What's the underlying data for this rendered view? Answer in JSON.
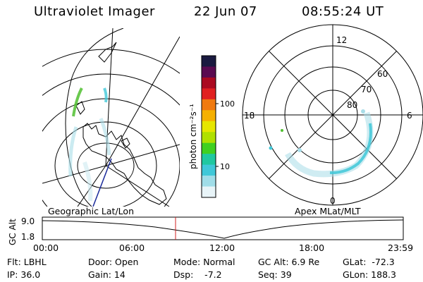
{
  "header": {
    "title": "Ultraviolet Imager",
    "date": "22 Jun 07",
    "time": "08:55:24 UT"
  },
  "colorbar": {
    "label": "photon cm⁻²s⁻¹",
    "ticks": [
      "100",
      "10"
    ],
    "colors": [
      "#1a1a40",
      "#5a0a50",
      "#aa0a20",
      "#e02020",
      "#f07a10",
      "#f5b000",
      "#e6e600",
      "#b0e000",
      "#40d020",
      "#20c8a0",
      "#40c8d8",
      "#a0dde8",
      "#e8f4f8"
    ]
  },
  "left_map": {
    "caption": "Geographic Lat/Lon"
  },
  "polar_plot": {
    "caption": "Apex MLat/MLT",
    "mlt_labels": [
      "12",
      "18",
      "6",
      "0"
    ],
    "lat_labels": [
      "60",
      "70",
      "80"
    ]
  },
  "timeline": {
    "y_axis_label": "GC Alt",
    "y_ticks": [
      "9.0",
      "1.8"
    ],
    "x_ticks": [
      "00:00",
      "06:00",
      "12:00",
      "18:00",
      "23:59"
    ]
  },
  "info": {
    "filter": "Flt: LBHL",
    "ip": "IP: 36.0",
    "door": "Door: Open",
    "gain": "Gain: 14",
    "mode": "Mode: Normal",
    "dsp": "Dsp:    -7.2",
    "gc_alt": "GC Alt: 6.9 Re",
    "seq": "Seq: 39",
    "glat": "GLat:  -72.3",
    "glon": "GLon: 188.3"
  },
  "colors": {
    "accent_marker": "#d02020",
    "aurora_cyan": "#40c8d8",
    "aurora_green": "#50c030"
  }
}
